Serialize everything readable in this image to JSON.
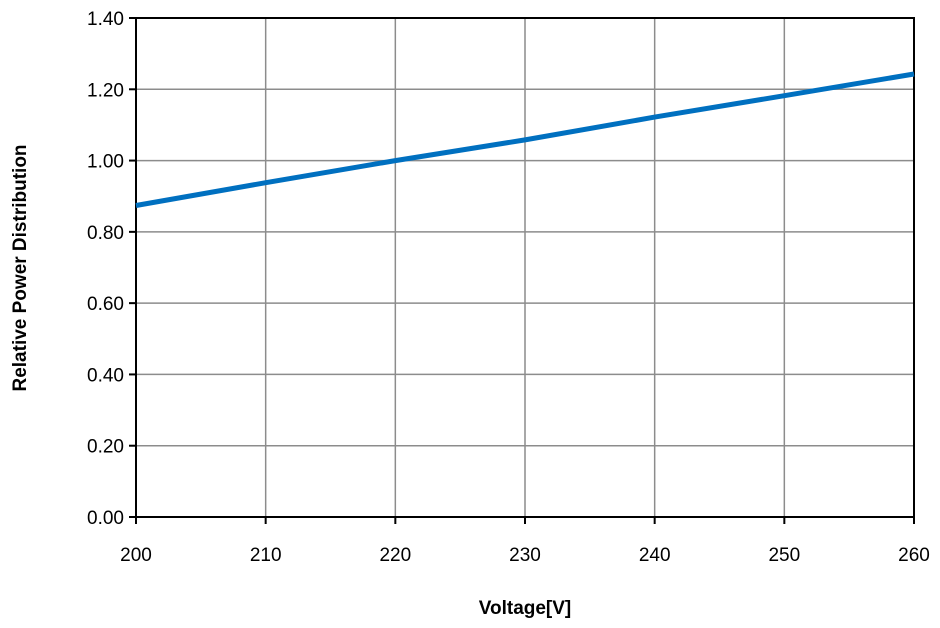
{
  "chart_data": {
    "type": "line",
    "title": "",
    "xlabel": "Voltage[V]",
    "ylabel": "Relative Power Distribution",
    "xlim": [
      200,
      260
    ],
    "ylim": [
      0,
      1.4
    ],
    "x_ticks": [
      200,
      210,
      220,
      230,
      240,
      250,
      260
    ],
    "y_ticks": [
      "0.00",
      "0.20",
      "0.40",
      "0.60",
      "0.80",
      "1.00",
      "1.20",
      "1.40"
    ],
    "grid": true,
    "legend": "none",
    "series": [
      {
        "color": "#0070c0",
        "x": [
          200,
          210,
          220,
          230,
          240,
          250,
          260
        ],
        "y": [
          0.874,
          0.938,
          1.0,
          1.058,
          1.122,
          1.182,
          1.243
        ]
      }
    ]
  }
}
